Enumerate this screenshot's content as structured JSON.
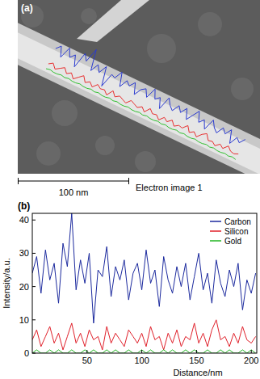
{
  "panel_a": {
    "label": "(a)",
    "scale_bar": "100 nm",
    "caption": "Electron image 1"
  },
  "chart_data": {
    "type": "line",
    "title": "(b)",
    "x_label": "Distance/nm",
    "y_label": "Intensity/a.u.",
    "x": [
      0,
      4,
      8,
      12,
      16,
      20,
      24,
      28,
      32,
      36,
      40,
      44,
      48,
      52,
      56,
      60,
      64,
      68,
      72,
      76,
      80,
      84,
      88,
      92,
      96,
      100,
      104,
      108,
      112,
      116,
      120,
      124,
      128,
      132,
      136,
      140,
      144,
      148,
      152,
      156,
      160,
      164,
      168,
      172,
      176,
      180,
      184,
      188,
      192,
      196,
      200,
      204
    ],
    "series": [
      {
        "name": "Carbon",
        "color": "#1c2a9e",
        "values": [
          24,
          29,
          18,
          31,
          22,
          27,
          15,
          33,
          26,
          42,
          19,
          28,
          21,
          30,
          9,
          25,
          23,
          32,
          17,
          26,
          22,
          28,
          16,
          24,
          27,
          19,
          31,
          21,
          25,
          14,
          29,
          22,
          18,
          26,
          20,
          27,
          16,
          23,
          30,
          19,
          24,
          15,
          28,
          21,
          17,
          25,
          20,
          27,
          13,
          22,
          18,
          24
        ]
      },
      {
        "name": "Silicon",
        "color": "#e0202a",
        "values": [
          4,
          7,
          2,
          5,
          8,
          3,
          6,
          1,
          5,
          9,
          3,
          6,
          2,
          7,
          4,
          5,
          1,
          8,
          3,
          6,
          4,
          2,
          7,
          5,
          3,
          6,
          2,
          8,
          4,
          5,
          1,
          6,
          3,
          7,
          2,
          5,
          4,
          9,
          3,
          6,
          2,
          7,
          10,
          4,
          5,
          2,
          6,
          3,
          8,
          4,
          3,
          5
        ]
      },
      {
        "name": "Gold",
        "color": "#22b522",
        "values": [
          0,
          1,
          0,
          0,
          1,
          0,
          1,
          0,
          0,
          1,
          0,
          0,
          1,
          0,
          1,
          0,
          0,
          1,
          0,
          1,
          0,
          0,
          1,
          0,
          0,
          1,
          0,
          1,
          0,
          0,
          1,
          0,
          1,
          0,
          0,
          1,
          0,
          1,
          0,
          0,
          1,
          0,
          0,
          1,
          0,
          1,
          0,
          0,
          1,
          0,
          1,
          0
        ]
      }
    ],
    "xlim": [
      0,
      205
    ],
    "ylim": [
      0,
      42
    ],
    "xticks": [
      50,
      100,
      150,
      200
    ],
    "yticks": [
      0,
      10,
      20,
      30,
      40
    ],
    "legend": "top-right",
    "grid": false
  }
}
